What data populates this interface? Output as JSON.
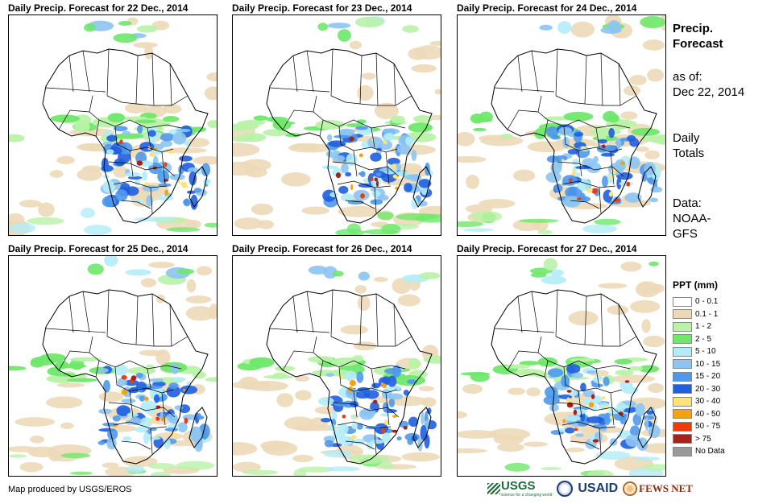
{
  "panels": [
    {
      "title": "Daily Precip. Forecast for 22 Dec., 2014"
    },
    {
      "title": "Daily Precip. Forecast for 23 Dec., 2014"
    },
    {
      "title": "Daily Precip. Forecast for 24 Dec., 2014"
    },
    {
      "title": "Daily Precip. Forecast for 25 Dec., 2014"
    },
    {
      "title": "Daily Precip. Forecast for 26 Dec., 2014"
    },
    {
      "title": "Daily Precip. Forecast for 27 Dec., 2014"
    }
  ],
  "info": {
    "title_line1": "Precip.",
    "title_line2": "Forecast",
    "asof_label": "as of:",
    "asof_date": "Dec 22, 2014",
    "totals_line1": "Daily",
    "totals_line2": "Totals",
    "data_label": "Data:",
    "data_line1": "NOAA-",
    "data_line2": "GFS"
  },
  "legend": {
    "title": "PPT (mm)",
    "items": [
      {
        "label": "0 - 0.1",
        "color": "#ffffff"
      },
      {
        "label": "0.1 - 1",
        "color": "#ecd9b8"
      },
      {
        "label": "1 - 2",
        "color": "#b9f2a8"
      },
      {
        "label": "2 - 5",
        "color": "#6ee86a"
      },
      {
        "label": "5 - 10",
        "color": "#b3ecf7"
      },
      {
        "label": "10 - 15",
        "color": "#8cc4f2"
      },
      {
        "label": "15 - 20",
        "color": "#4f99ea"
      },
      {
        "label": "20 - 30",
        "color": "#1f5ee0"
      },
      {
        "label": "30 - 40",
        "color": "#fde37a"
      },
      {
        "label": "40 - 50",
        "color": "#f7a20a"
      },
      {
        "label": "50 - 75",
        "color": "#f03a0c"
      },
      {
        "label": "> 75",
        "color": "#a8221a"
      },
      {
        "label": "No Data",
        "color": "#999999"
      }
    ]
  },
  "footer": {
    "credit": "Map produced by USGS/EROS",
    "logo_usgs": "USGS",
    "logo_usgs_sub": "science for a changing world",
    "logo_usaid": "USAID",
    "logo_fews": "FEWS NET"
  }
}
